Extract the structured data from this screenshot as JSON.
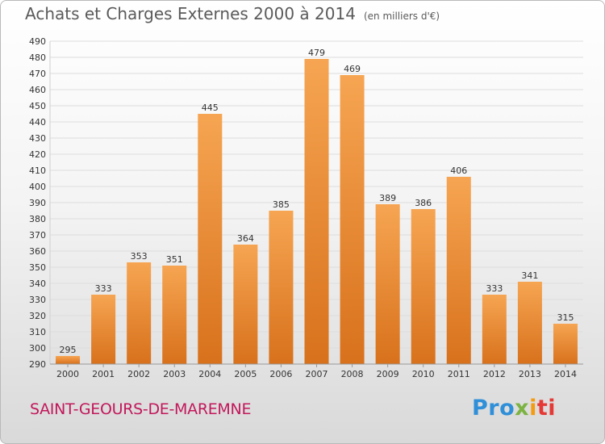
{
  "header": {
    "title": "Achats et Charges Externes 2000 à 2014",
    "unit": "(en milliers d'€)"
  },
  "footer": {
    "commune": "SAINT-GEOURS-DE-MAREMNE",
    "brand_parts": [
      "Pro",
      "x",
      "i",
      "ti"
    ]
  },
  "colors": {
    "bar_top": "#f6a552",
    "bar_bottom": "#d8711c",
    "grid": "#dddddd",
    "axis_text": "#333333",
    "commune": "#c2185b"
  },
  "chart_data": {
    "type": "bar",
    "title": "Achats et Charges Externes 2000 à 2014",
    "subtitle": "(en milliers d'€)",
    "categories": [
      "2000",
      "2001",
      "2002",
      "2003",
      "2004",
      "2005",
      "2006",
      "2007",
      "2008",
      "2009",
      "2010",
      "2011",
      "2012",
      "2013",
      "2014"
    ],
    "values": [
      295,
      333,
      353,
      351,
      445,
      364,
      385,
      479,
      469,
      389,
      386,
      406,
      333,
      341,
      315
    ],
    "ylim": [
      290,
      490
    ],
    "ytick_step": 10,
    "grid": true,
    "data_labels": true
  }
}
